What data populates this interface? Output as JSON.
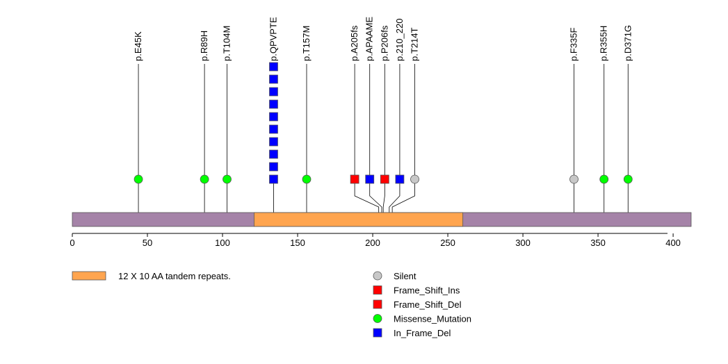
{
  "chart_data": {
    "type": "lollipop",
    "title": "",
    "protein_length": 412,
    "x_ticks": [
      0,
      50,
      100,
      150,
      200,
      250,
      300,
      350,
      400
    ],
    "x_tick_labels": [
      "0",
      "50",
      "100",
      "150",
      "200",
      "250",
      "300",
      "350",
      "400"
    ],
    "domains": [
      {
        "name": "12 X 10 AA tandem repeats.",
        "start": 121,
        "end": 260,
        "color": "#ffa54f"
      }
    ],
    "backbone_color": "#a583a8",
    "mutations": [
      {
        "label": "p.E45K",
        "pos": 44,
        "count": 1,
        "type": "Missense_Mutation",
        "shape": "circle",
        "color": "#00ff00"
      },
      {
        "label": "p.R89H",
        "pos": 88,
        "count": 1,
        "type": "Missense_Mutation",
        "shape": "circle",
        "color": "#00ff00"
      },
      {
        "label": "p.T104M",
        "pos": 103,
        "count": 1,
        "type": "Missense_Mutation",
        "shape": "circle",
        "color": "#00ff00"
      },
      {
        "label": "p.QPVPTE",
        "pos": 134,
        "count": 10,
        "type": "In_Frame_Del",
        "shape": "square",
        "color": "#0000ff"
      },
      {
        "label": "p.T157M",
        "pos": 156,
        "count": 1,
        "type": "Missense_Mutation",
        "shape": "circle",
        "color": "#00ff00"
      },
      {
        "label": "p.A205fs",
        "pos": 204,
        "marker_pos": 188,
        "count": 1,
        "type": "Frame_Shift_Ins",
        "shape": "square",
        "color": "#ff0000"
      },
      {
        "label": "p.APAAME",
        "pos": 206,
        "marker_pos": 198,
        "count": 1,
        "type": "In_Frame_Del",
        "shape": "square",
        "color": "#0000ff"
      },
      {
        "label": "p.P206fs",
        "pos": 207,
        "marker_pos": 208,
        "count": 1,
        "type": "Frame_Shift_Del",
        "shape": "square",
        "color": "#ff0000"
      },
      {
        "label": "p.210_220",
        "pos": 211,
        "marker_pos": 218,
        "count": 1,
        "type": "In_Frame_Del",
        "shape": "square",
        "color": "#0000ff"
      },
      {
        "label": "p.T214T",
        "pos": 213,
        "marker_pos": 228,
        "count": 1,
        "type": "Silent",
        "shape": "circle",
        "color": "#c8c8c8"
      },
      {
        "label": "p.F335F",
        "pos": 334,
        "count": 1,
        "type": "Silent",
        "shape": "circle",
        "color": "#c8c8c8"
      },
      {
        "label": "p.R355H",
        "pos": 354,
        "count": 1,
        "type": "Missense_Mutation",
        "shape": "circle",
        "color": "#00ff00"
      },
      {
        "label": "p.D371G",
        "pos": 370,
        "count": 1,
        "type": "Missense_Mutation",
        "shape": "circle",
        "color": "#00ff00"
      }
    ],
    "legend": [
      {
        "label": "Silent",
        "shape": "circle",
        "color": "#c8c8c8"
      },
      {
        "label": "Frame_Shift_Ins",
        "shape": "square",
        "color": "#ff0000"
      },
      {
        "label": "Frame_Shift_Del",
        "shape": "square",
        "color": "#ff0000"
      },
      {
        "label": "Missense_Mutation",
        "shape": "circle",
        "color": "#00ff00"
      },
      {
        "label": "In_Frame_Del",
        "shape": "square",
        "color": "#0000ff"
      }
    ]
  }
}
